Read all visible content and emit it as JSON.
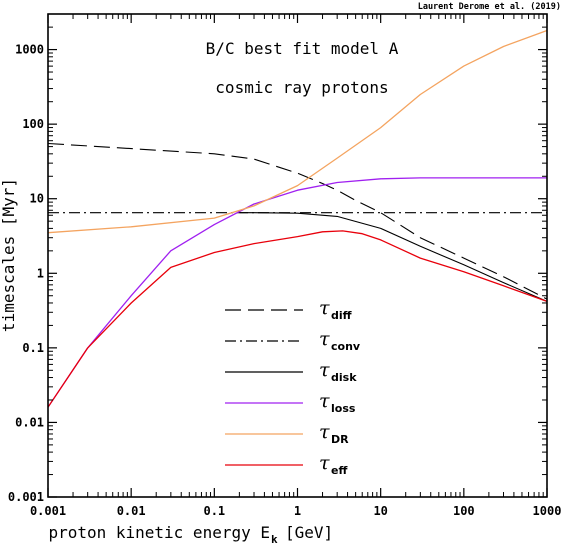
{
  "chart_data": {
    "type": "line",
    "credit": "Laurent Derome et al. (2019)",
    "title_lines": [
      "B/C best fit model A",
      "cosmic ray protons"
    ],
    "xlabel": "proton kinetic energy E",
    "xlabel_sub": "k",
    "xlabel_unit": "[GeV]",
    "ylabel": "timescales [Myr]",
    "xscale": "log",
    "yscale": "log",
    "xlim": [
      0.001,
      1000
    ],
    "ylim": [
      0.001,
      3000
    ],
    "x_ticks": [
      "0.001",
      "0.01",
      "0.1",
      "1",
      "10",
      "100",
      "1000"
    ],
    "y_ticks": [
      "0.001",
      "0.01",
      "0.1",
      "1",
      "10",
      "100",
      "1000"
    ],
    "legend_position": "lower-center",
    "series": [
      {
        "name": "diff",
        "symbol": "τ",
        "color": "#000000",
        "dash": "dashed",
        "x": [
          0.001,
          0.01,
          0.1,
          0.3,
          1,
          2,
          3,
          5,
          10,
          30,
          100,
          300,
          1000
        ],
        "y": [
          55,
          47,
          40,
          34,
          22,
          16,
          13,
          9.5,
          6.5,
          3,
          1.6,
          0.9,
          0.45
        ]
      },
      {
        "name": "conv",
        "symbol": "τ",
        "color": "#000000",
        "dash": "dashdot",
        "x": [
          0.001,
          1000
        ],
        "y": [
          6.5,
          6.5
        ]
      },
      {
        "name": "disk",
        "symbol": "τ",
        "color": "#000000",
        "dash": "solid",
        "x": [
          0.2,
          0.3,
          1,
          3,
          10,
          30,
          100,
          300,
          1000
        ],
        "y": [
          6.5,
          6.5,
          6.4,
          5.8,
          4.0,
          2.3,
          1.3,
          0.75,
          0.42
        ]
      },
      {
        "name": "loss",
        "symbol": "τ",
        "color": "#a020f0",
        "dash": "solid",
        "x": [
          0.001,
          0.003,
          0.01,
          0.03,
          0.1,
          0.3,
          1,
          3,
          10,
          30,
          100,
          300,
          1000
        ],
        "y": [
          0.016,
          0.1,
          0.5,
          2.0,
          4.5,
          8.5,
          13,
          16.5,
          18.5,
          19,
          19,
          19,
          19
        ]
      },
      {
        "name": "DR",
        "symbol": "τ",
        "color": "#f4a460",
        "dash": "solid",
        "x": [
          0.001,
          0.01,
          0.1,
          0.3,
          1,
          3,
          10,
          30,
          100,
          300,
          1000
        ],
        "y": [
          3.5,
          4.2,
          5.5,
          8,
          15,
          35,
          90,
          250,
          600,
          1100,
          1800
        ]
      },
      {
        "name": "eff",
        "symbol": "τ",
        "color": "#e8000b",
        "dash": "solid",
        "x": [
          0.001,
          0.003,
          0.01,
          0.03,
          0.1,
          0.3,
          1,
          2,
          3.5,
          6,
          10,
          30,
          100,
          300,
          1000
        ],
        "y": [
          0.016,
          0.1,
          0.4,
          1.2,
          1.9,
          2.5,
          3.1,
          3.6,
          3.7,
          3.4,
          2.8,
          1.6,
          1.05,
          0.68,
          0.42
        ]
      }
    ]
  }
}
